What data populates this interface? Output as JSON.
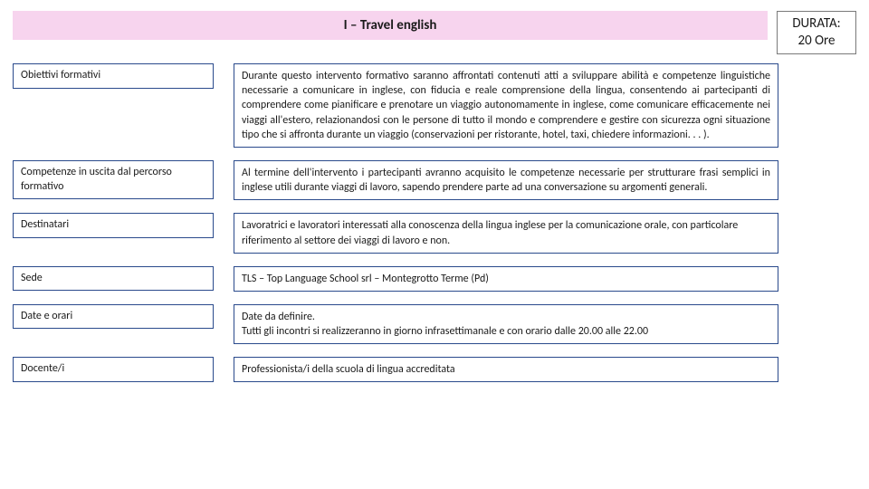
{
  "header": {
    "title": "I – Travel english",
    "durata_line1": "DURATA:",
    "durata_line2": "20 Ore"
  },
  "rows": [
    {
      "label": "Obiettivi formativi",
      "value": "Durante questo intervento formativo saranno affrontati contenuti atti a sviluppare abilità e competenze linguistiche necessarie a comunicare in inglese, con fiducia e reale comprensione della lingua, consentendo ai partecipanti di comprendere come pianificare e prenotare un viaggio autonomamente in inglese, come comunicare efficacemente nei viaggi all'estero, relazionandosi con le persone di tutto il mondo e comprendere e gestire con sicurezza ogni situazione tipo che si affronta durante un viaggio (conservazioni per ristorante, hotel, taxi, chiedere informazioni. . . ).",
      "justify": true
    },
    {
      "label": "Competenze in uscita dal percorso formativo",
      "value": "Al termine dell'intervento i partecipanti avranno acquisito le competenze necessarie per strutturare frasi semplici in inglese utili durante viaggi di lavoro, sapendo prendere parte ad una conversazione su argomenti generali.",
      "justify": true
    },
    {
      "label": "Destinatari",
      "value": "Lavoratrici e lavoratori interessati alla conoscenza della lingua inglese per la comunicazione orale, con particolare riferimento al settore dei viaggi di lavoro e non.",
      "justify": false
    },
    {
      "label": "Sede",
      "value": "TLS – Top Language School srl – Montegrotto Terme (Pd)",
      "justify": false
    },
    {
      "label": "Date e orari",
      "value": "Date da definire.\nTutti gli incontri si realizzeranno in giorno infrasettimanale e con orario dalle 20.00 alle 22.00",
      "justify": false
    },
    {
      "label": "Docente/i",
      "value": "Professionista/i della scuola di lingua accreditata",
      "justify": false
    }
  ],
  "style": {
    "title_bg": "#f7d4ee",
    "box_border": "#2a4a8c",
    "durata_border": "#7a7a7a",
    "text_color": "#1a1a1a",
    "title_fontsize": 15,
    "body_fontsize": 12
  }
}
